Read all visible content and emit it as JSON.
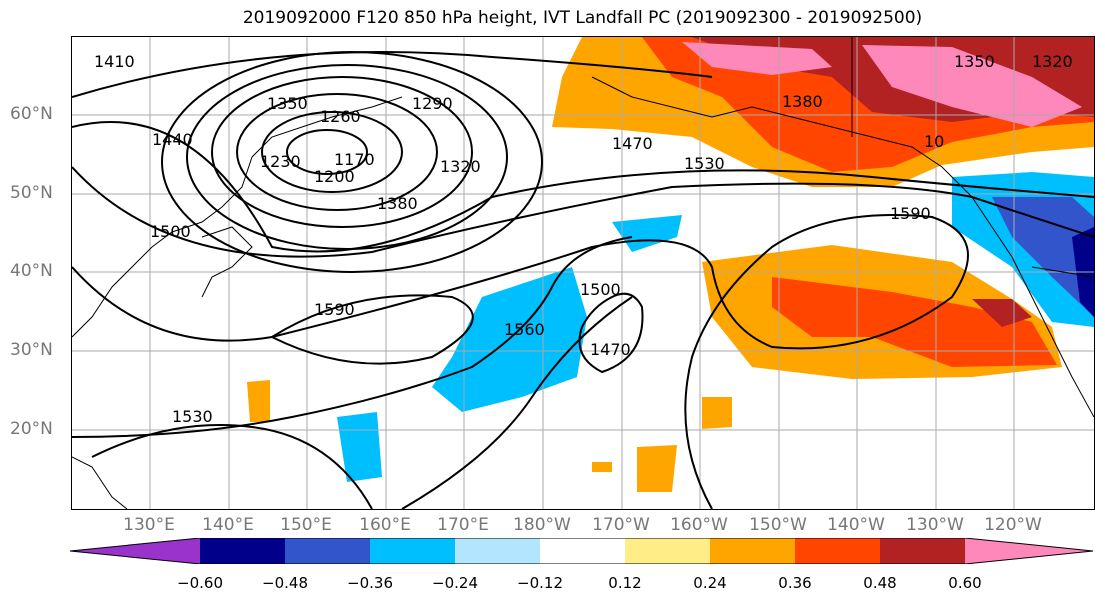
{
  "title": "2019092000 F120 850 hPa height, IVT Landfall PC (2019092300 - 2019092500)",
  "lat_labels": [
    "60°N",
    "50°N",
    "40°N",
    "30°N",
    "20°N"
  ],
  "lon_labels": [
    "130°E",
    "140°E",
    "150°E",
    "160°E",
    "170°E",
    "180°W",
    "170°W",
    "160°W",
    "150°W",
    "140°W",
    "130°W",
    "120°W"
  ],
  "contour_labels": [
    "1410",
    "1350",
    "1260",
    "1290",
    "1230",
    "1440",
    "1170",
    "1200",
    "1320",
    "1380",
    "1500",
    "1470",
    "1530",
    "1590",
    "1560",
    "1500",
    "1470",
    "1590",
    "1530",
    "1350",
    "1320",
    "1380",
    "10"
  ],
  "colorbar": {
    "ticks": [
      "−0.60",
      "−0.48",
      "−0.36",
      "−0.24",
      "−0.12",
      "0.12",
      "0.24",
      "0.36",
      "0.48",
      "0.60"
    ],
    "colors": [
      "#9933cc",
      "#00008b",
      "#3355cc",
      "#00bfff",
      "#b3e5ff",
      "#ffffff",
      "#ffee88",
      "#ffa500",
      "#ff4500",
      "#b22222",
      "#ff88bb"
    ]
  },
  "style": {
    "contour_color": "#000000",
    "grid_color": "#aaaaaa",
    "label_color": "#777777"
  }
}
